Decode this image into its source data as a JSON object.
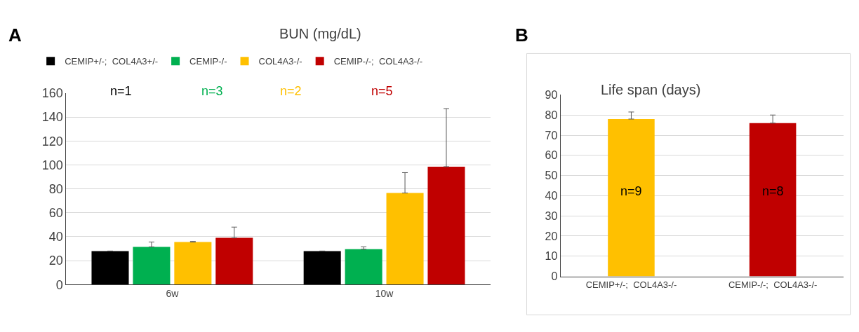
{
  "chart_data": [
    {
      "type": "bar",
      "title": "BUN (mg/dL)",
      "categories": [
        "6w",
        "10w"
      ],
      "series": [
        {
          "name": "CEMIP+/-;  COL4A3+/-",
          "color": "#000000",
          "values": [
            28,
            28
          ],
          "errors": [
            null,
            null
          ]
        },
        {
          "name": "CEMIP-/-",
          "color": "#00b050",
          "values": [
            31.5,
            29.5
          ],
          "errors": [
            [
              31.5,
              35.5
            ],
            [
              29.5,
              31.5
            ]
          ]
        },
        {
          "name": "COL4A3-/-",
          "color": "#ffc000",
          "values": [
            35.5,
            76.5
          ],
          "errors": [
            [
              35.5,
              36
            ],
            [
              76.5,
              93.5
            ]
          ]
        },
        {
          "name": "CEMIP-/-;  COL4A3-/-",
          "color": "#c00000",
          "values": [
            39,
            98.5
          ],
          "errors": [
            [
              39,
              48
            ],
            [
              98.5,
              147
            ]
          ]
        }
      ],
      "ylim": [
        0,
        160
      ],
      "yticks": [
        0,
        20,
        40,
        60,
        80,
        100,
        120,
        140,
        160
      ],
      "grid": "y",
      "legend": "top",
      "annotations": [
        "A",
        "n=1",
        "n=3",
        "n=2",
        "n=5"
      ]
    },
    {
      "type": "bar",
      "title": "Life span (days)",
      "categories": [
        "CEMIP+/-;  COL4A3-/-",
        "CEMIP-/-;  COL4A3-/-"
      ],
      "values": [
        78,
        76
      ],
      "colors": [
        "#ffc000",
        "#c00000"
      ],
      "errors": [
        [
          78,
          81.5
        ],
        [
          76,
          80
        ]
      ],
      "ylim": [
        0,
        90
      ],
      "yticks": [
        0,
        10,
        20,
        30,
        40,
        50,
        60,
        70,
        80,
        90
      ],
      "grid": "y",
      "legend": false,
      "annotations": [
        "B",
        "n=9",
        "n=8"
      ]
    }
  ]
}
